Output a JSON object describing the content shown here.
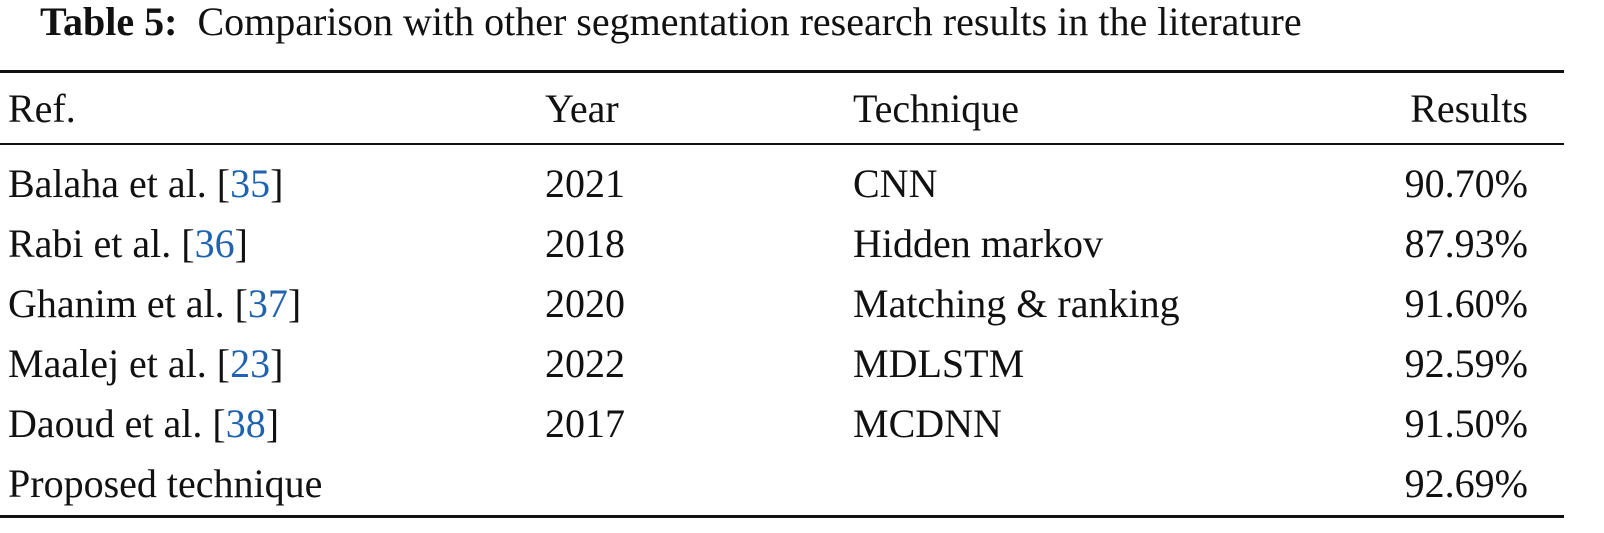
{
  "caption": {
    "label": "Table 5:",
    "text": "Comparison with other segmentation research results in the literature"
  },
  "table": {
    "header": [
      "Ref.",
      "Year",
      "Technique",
      "Results"
    ],
    "rows": [
      {
        "ref": [
          "Balaha et al. [",
          "35",
          "]"
        ],
        "year": "2021",
        "technique": "CNN",
        "result": "90.70%"
      },
      {
        "ref": [
          "Rabi et al. [",
          "36",
          "]"
        ],
        "year": "2018",
        "technique": "Hidden markov",
        "result": "87.93%"
      },
      {
        "ref": [
          "Ghanim et al. [",
          "37",
          "]"
        ],
        "year": "2020",
        "technique": "Matching & ranking",
        "result": "91.60%"
      },
      {
        "ref": [
          "Maalej et al. [",
          "23",
          "]"
        ],
        "year": "2022",
        "technique": "MDLSTM",
        "result": "92.59%"
      },
      {
        "ref": [
          "Daoud et al. [",
          "38",
          "]"
        ],
        "year": "2017",
        "technique": "MCDNN",
        "result": "91.50%"
      },
      {
        "ref": [
          "Proposed technique"
        ],
        "result": "92.69%"
      }
    ]
  }
}
